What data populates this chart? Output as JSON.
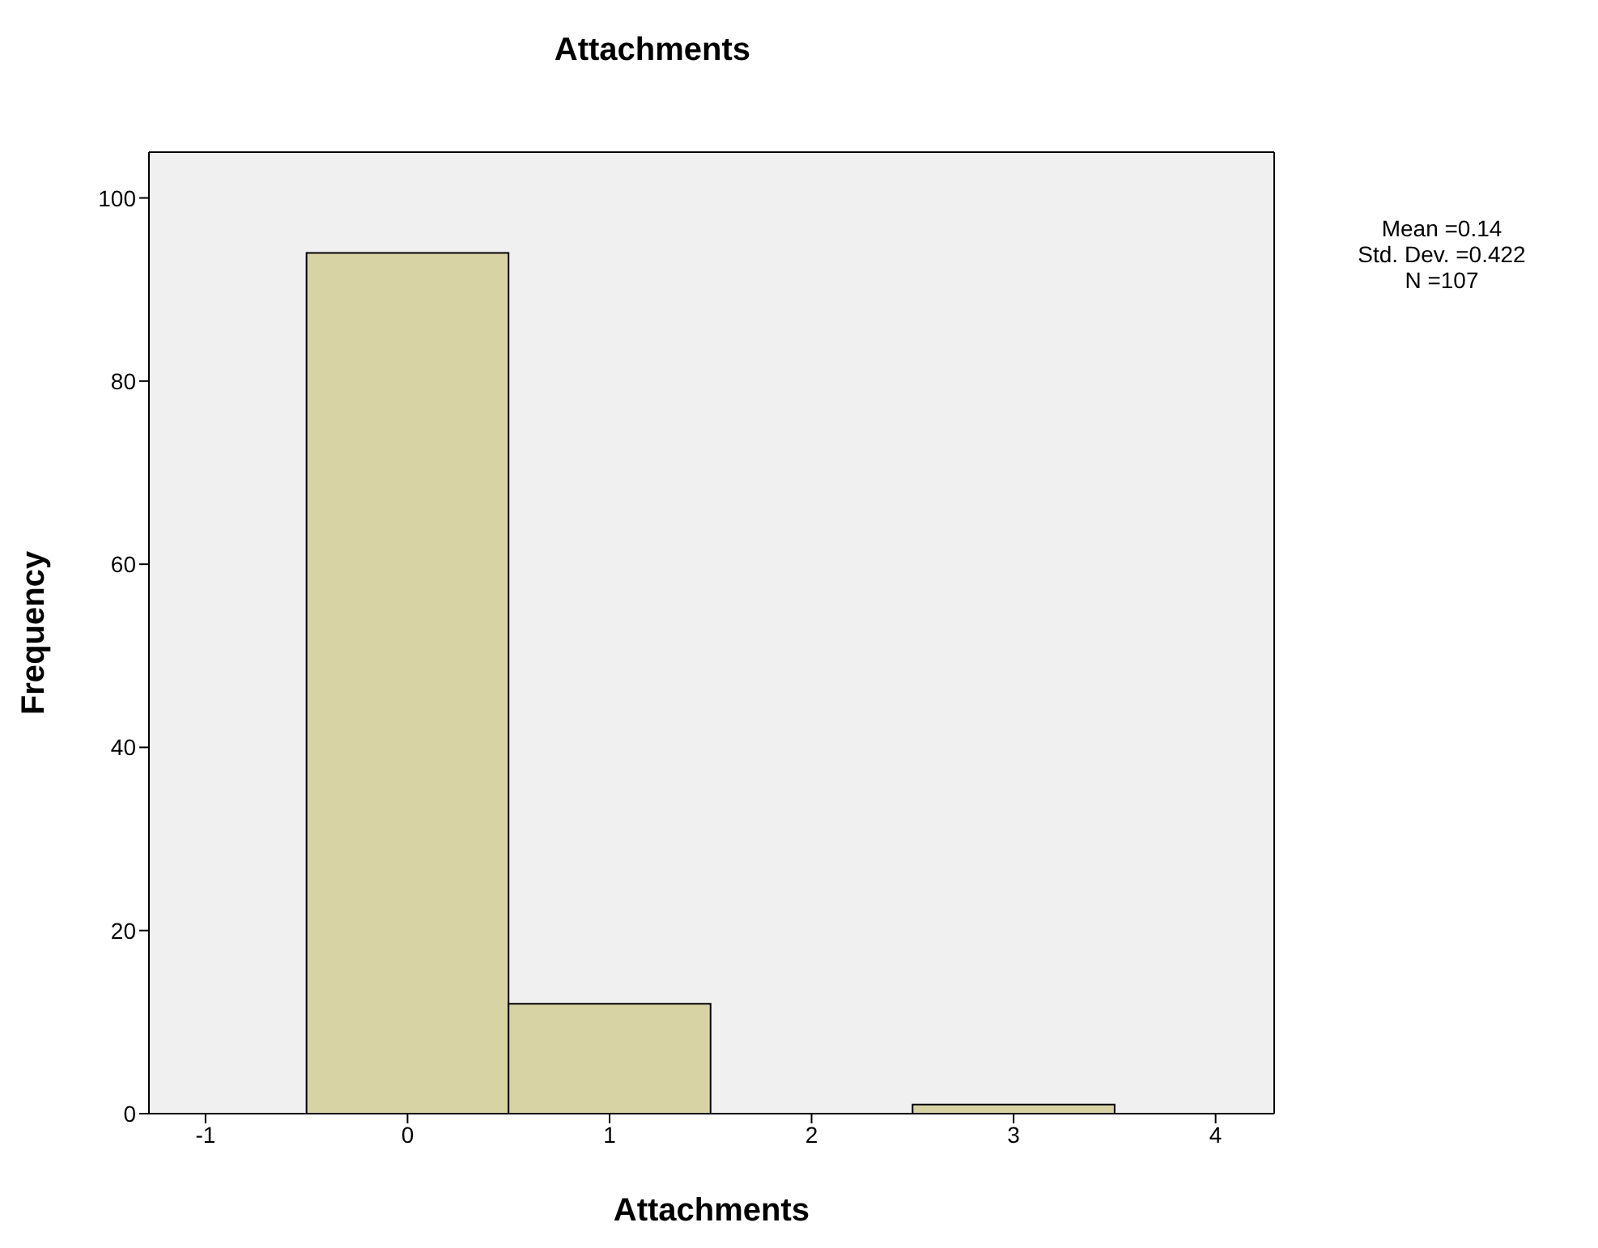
{
  "chart_data": {
    "type": "histogram",
    "title": "Attachments",
    "xlabel": "Attachments",
    "ylabel": "Frequency",
    "bins": [
      -0.5,
      0.5,
      1.5,
      2.5,
      3.5
    ],
    "values": [
      94,
      12,
      0,
      1
    ],
    "color": "#d8d3a5",
    "xlim": [
      -1.28,
      4.29
    ],
    "xticks": [
      -1,
      0,
      1,
      2,
      3,
      4
    ],
    "ylim": [
      0,
      105
    ],
    "yticks": [
      0,
      20,
      40,
      60,
      80,
      100
    ],
    "annotations": [
      "Mean =0.14",
      "Std. Dev. =0.422",
      "N =107"
    ]
  }
}
